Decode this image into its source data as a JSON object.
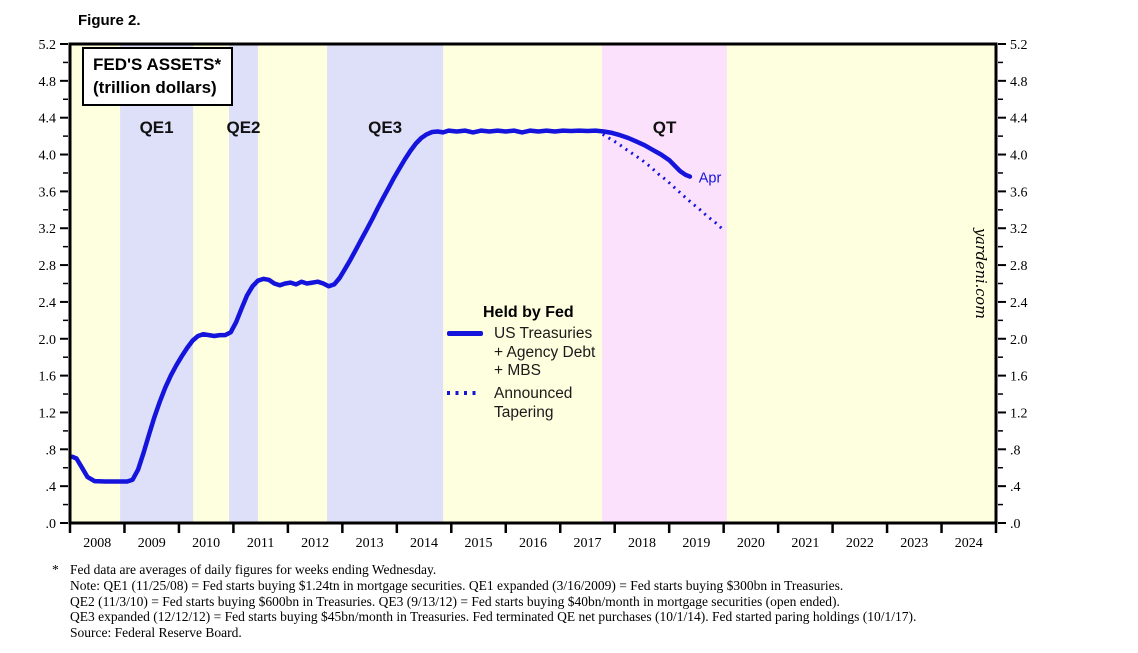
{
  "figure": {
    "label": "Figure 2."
  },
  "chart": {
    "title_line1": "FED'S ASSETS*",
    "title_line2": "(trillion dollars)",
    "watermark": "yardeni.com"
  },
  "legend": {
    "header": "Held by Fed",
    "items": [
      {
        "swatch": "solid-line",
        "lines": [
          "US Treasuries",
          "+ Agency Debt",
          "+ MBS"
        ]
      },
      {
        "swatch": "dotted-line",
        "lines": [
          "Announced",
          "Tapering"
        ]
      }
    ]
  },
  "footnotes": {
    "marker": "*",
    "lines": [
      "Fed data are averages of daily figures for weeks ending Wednesday.",
      "Note: QE1 (11/25/08) = Fed starts buying $1.24tn in mortgage securities. QE1 expanded (3/16/2009) = Fed starts buying $300bn in Treasuries.",
      "QE2 (11/3/10) = Fed starts buying $600bn in Treasuries. QE3 (9/13/12) = Fed starts buying $40bn/month in mortgage securities (open ended).",
      "QE3 expanded (12/12/12) = Fed starts buying $45bn/month in Treasuries. Fed terminated QE net purchases (10/1/14). Fed started paring holdings (10/1/17).",
      "Source: Federal Reserve Board."
    ]
  },
  "colors": {
    "plot_bg": "#feffdf",
    "qe_band": "#dedff9",
    "qt_band": "#fbe1fb",
    "line_blue": "#1414dd",
    "axis_black": "#000000"
  },
  "chart_data": {
    "type": "line",
    "title": "FED'S ASSETS* (trillion dollars)",
    "xlabel": "",
    "ylabel": "trillion dollars",
    "xlim": [
      2008,
      2025
    ],
    "ylim": [
      0,
      5.2
    ],
    "y_tick_major": 0.4,
    "y_tick_minor": 0.2,
    "y_tick_labels": [
      "5.2",
      "4.8",
      "4.4",
      "4.0",
      "3.6",
      "3.2",
      "2.8",
      "2.4",
      "2.0",
      "1.6",
      "1.2",
      ".8",
      ".4",
      ".0"
    ],
    "x_years": [
      2008,
      2009,
      2010,
      2011,
      2012,
      2013,
      2014,
      2015,
      2016,
      2017,
      2018,
      2019,
      2020,
      2021,
      2022,
      2023,
      2024
    ],
    "grid": false,
    "legend_position": "center",
    "bands": [
      {
        "label": "QE1",
        "start": 2008.92,
        "end": 2010.26,
        "color": "#dedff9"
      },
      {
        "label": "QE2",
        "start": 2010.92,
        "end": 2011.45,
        "color": "#dedff9"
      },
      {
        "label": "QE3",
        "start": 2012.72,
        "end": 2014.85,
        "color": "#dedff9"
      },
      {
        "label": "QT",
        "start": 2017.77,
        "end": 2020.06,
        "color": "#fbe1fb"
      }
    ],
    "series": [
      {
        "name": "US Treasuries + Agency Debt + MBS",
        "style": "solid",
        "color": "#1414dd",
        "points": [
          [
            2008.04,
            0.72
          ],
          [
            2008.12,
            0.7
          ],
          [
            2008.22,
            0.6
          ],
          [
            2008.32,
            0.5
          ],
          [
            2008.45,
            0.455
          ],
          [
            2008.65,
            0.45
          ],
          [
            2008.85,
            0.45
          ],
          [
            2009.05,
            0.45
          ],
          [
            2009.15,
            0.47
          ],
          [
            2009.25,
            0.58
          ],
          [
            2009.35,
            0.76
          ],
          [
            2009.45,
            0.96
          ],
          [
            2009.55,
            1.15
          ],
          [
            2009.65,
            1.32
          ],
          [
            2009.75,
            1.47
          ],
          [
            2009.85,
            1.6
          ],
          [
            2009.95,
            1.71
          ],
          [
            2010.05,
            1.81
          ],
          [
            2010.15,
            1.9
          ],
          [
            2010.25,
            1.98
          ],
          [
            2010.35,
            2.03
          ],
          [
            2010.45,
            2.05
          ],
          [
            2010.55,
            2.04
          ],
          [
            2010.65,
            2.03
          ],
          [
            2010.75,
            2.04
          ],
          [
            2010.85,
            2.04
          ],
          [
            2010.95,
            2.07
          ],
          [
            2011.05,
            2.18
          ],
          [
            2011.15,
            2.33
          ],
          [
            2011.25,
            2.47
          ],
          [
            2011.35,
            2.57
          ],
          [
            2011.45,
            2.63
          ],
          [
            2011.55,
            2.65
          ],
          [
            2011.65,
            2.64
          ],
          [
            2011.75,
            2.6
          ],
          [
            2011.85,
            2.58
          ],
          [
            2011.95,
            2.6
          ],
          [
            2012.05,
            2.61
          ],
          [
            2012.15,
            2.59
          ],
          [
            2012.25,
            2.62
          ],
          [
            2012.35,
            2.6
          ],
          [
            2012.45,
            2.61
          ],
          [
            2012.55,
            2.62
          ],
          [
            2012.65,
            2.6
          ],
          [
            2012.75,
            2.57
          ],
          [
            2012.85,
            2.59
          ],
          [
            2012.95,
            2.66
          ],
          [
            2013.05,
            2.76
          ],
          [
            2013.15,
            2.86
          ],
          [
            2013.25,
            2.97
          ],
          [
            2013.35,
            3.08
          ],
          [
            2013.45,
            3.19
          ],
          [
            2013.55,
            3.3
          ],
          [
            2013.65,
            3.42
          ],
          [
            2013.75,
            3.53
          ],
          [
            2013.85,
            3.64
          ],
          [
            2013.95,
            3.75
          ],
          [
            2014.05,
            3.85
          ],
          [
            2014.15,
            3.95
          ],
          [
            2014.25,
            4.04
          ],
          [
            2014.35,
            4.12
          ],
          [
            2014.45,
            4.18
          ],
          [
            2014.55,
            4.22
          ],
          [
            2014.65,
            4.245
          ],
          [
            2014.75,
            4.25
          ],
          [
            2014.85,
            4.24
          ],
          [
            2014.95,
            4.26
          ],
          [
            2015.1,
            4.25
          ],
          [
            2015.25,
            4.26
          ],
          [
            2015.4,
            4.24
          ],
          [
            2015.55,
            4.26
          ],
          [
            2015.7,
            4.25
          ],
          [
            2015.85,
            4.26
          ],
          [
            2016.0,
            4.25
          ],
          [
            2016.15,
            4.26
          ],
          [
            2016.3,
            4.24
          ],
          [
            2016.45,
            4.26
          ],
          [
            2016.6,
            4.25
          ],
          [
            2016.75,
            4.26
          ],
          [
            2016.9,
            4.25
          ],
          [
            2017.05,
            4.26
          ],
          [
            2017.2,
            4.255
          ],
          [
            2017.35,
            4.26
          ],
          [
            2017.5,
            4.255
          ],
          [
            2017.65,
            4.26
          ],
          [
            2017.8,
            4.25
          ],
          [
            2017.95,
            4.235
          ],
          [
            2018.1,
            4.21
          ],
          [
            2018.25,
            4.18
          ],
          [
            2018.4,
            4.14
          ],
          [
            2018.55,
            4.1
          ],
          [
            2018.7,
            4.05
          ],
          [
            2018.85,
            4.0
          ],
          [
            2019.0,
            3.94
          ],
          [
            2019.1,
            3.88
          ],
          [
            2019.2,
            3.82
          ],
          [
            2019.3,
            3.78
          ],
          [
            2019.38,
            3.76
          ]
        ]
      },
      {
        "name": "Announced Tapering",
        "style": "dotted",
        "color": "#1414dd",
        "points": [
          [
            2017.78,
            4.22
          ],
          [
            2017.92,
            4.17
          ],
          [
            2018.06,
            4.12
          ],
          [
            2018.2,
            4.06
          ],
          [
            2018.35,
            4.0
          ],
          [
            2018.5,
            3.94
          ],
          [
            2018.65,
            3.87
          ],
          [
            2018.8,
            3.79
          ],
          [
            2018.95,
            3.72
          ],
          [
            2019.1,
            3.64
          ],
          [
            2019.25,
            3.56
          ],
          [
            2019.4,
            3.48
          ],
          [
            2019.55,
            3.41
          ],
          [
            2019.7,
            3.33
          ],
          [
            2019.85,
            3.26
          ],
          [
            2020.0,
            3.18
          ]
        ]
      }
    ],
    "annotations": [
      {
        "text": "Apr",
        "x": 2019.47,
        "y": 3.76,
        "color": "#1414dd"
      }
    ]
  }
}
